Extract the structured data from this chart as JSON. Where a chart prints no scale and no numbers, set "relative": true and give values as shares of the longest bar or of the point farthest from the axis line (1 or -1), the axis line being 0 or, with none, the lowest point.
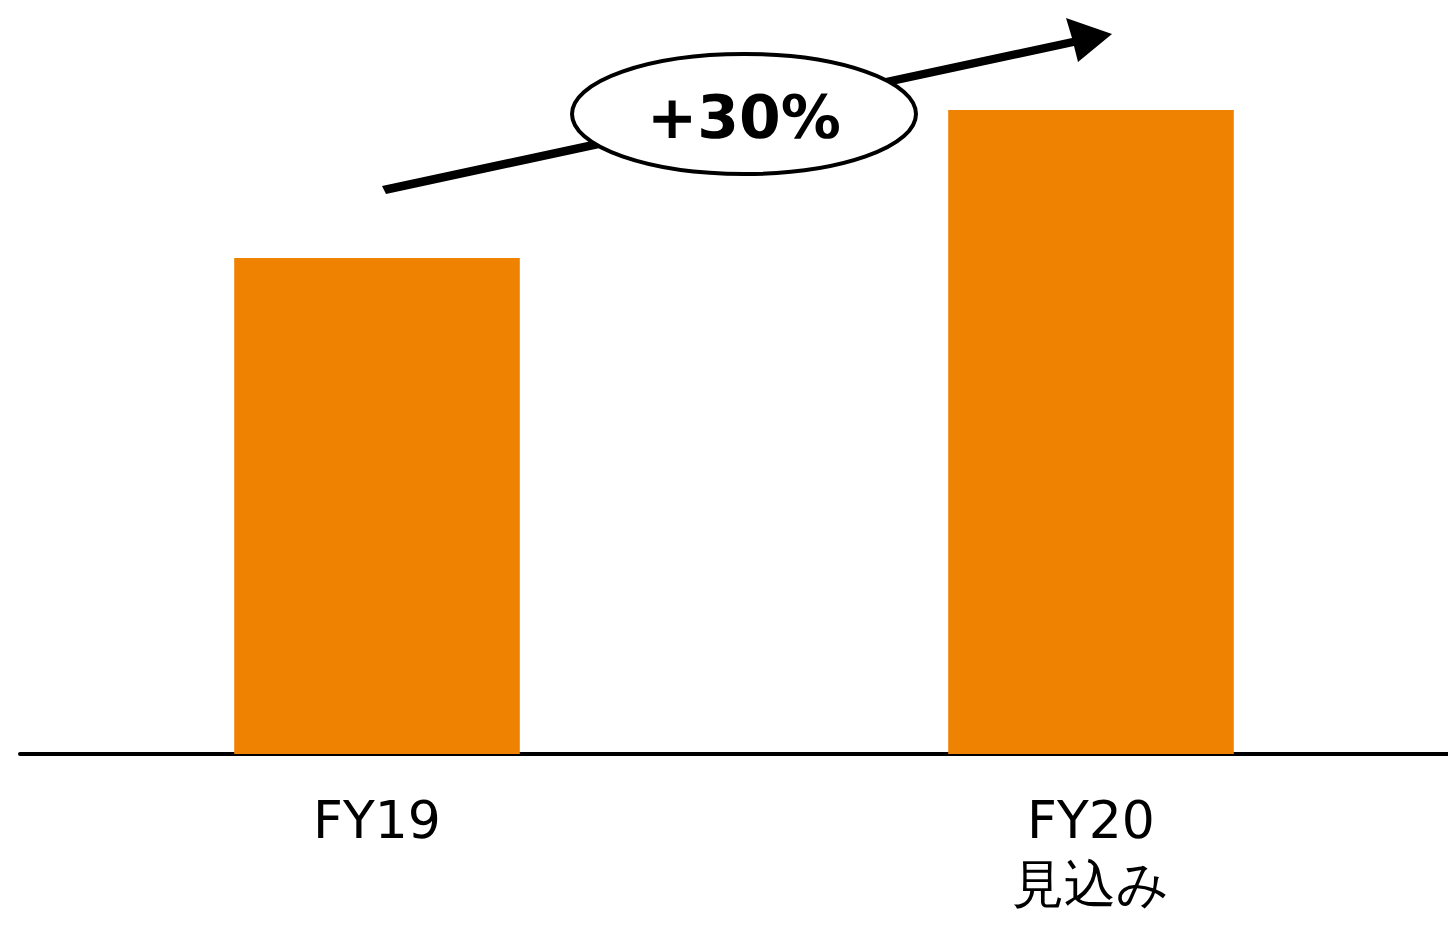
{
  "chart_data": {
    "type": "bar",
    "relative": true,
    "categories": [
      "FY19",
      "FY20\n見込み"
    ],
    "values": [
      0.77,
      1
    ],
    "color": "#ef8200",
    "annotations": [
      "+30%"
    ]
  }
}
